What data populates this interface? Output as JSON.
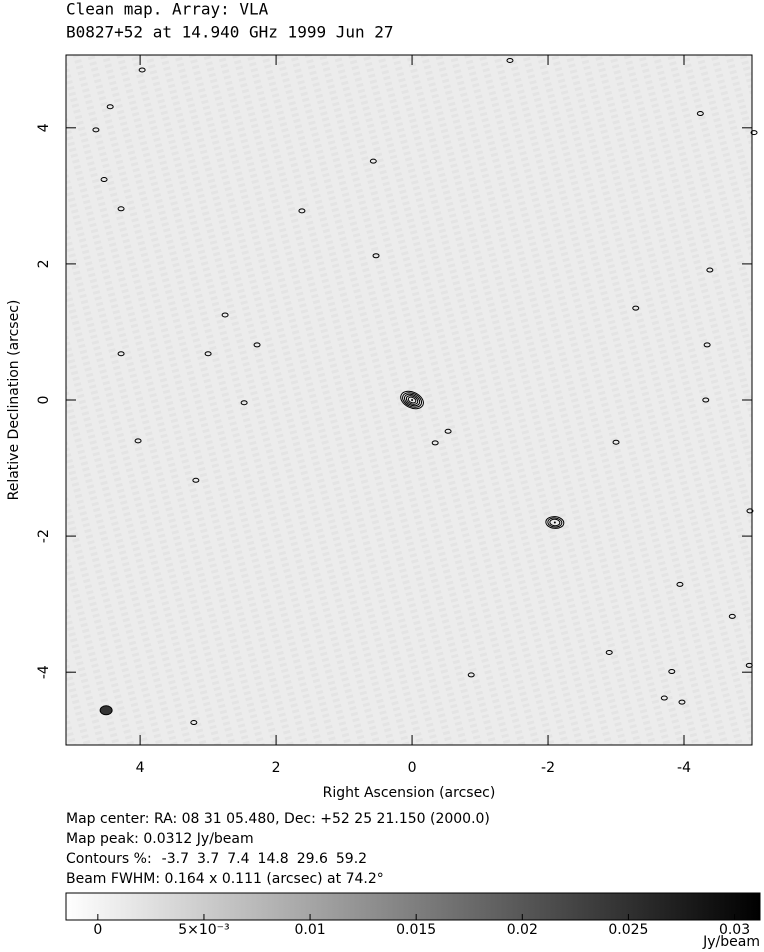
{
  "chart_data": {
    "type": "contour",
    "title": "Clean map.  Array: VLA",
    "subtitle": "B0827+52 at 14.940 GHz 1999 Jun 27",
    "x_label": "Right Ascension  (arcsec)",
    "y_label": "Relative Declination  (arcsec)",
    "xlim": [
      5.09,
      -5.0
    ],
    "xticks": [
      4,
      2,
      0,
      -2,
      -4
    ],
    "ylim": [
      -5.07,
      5.07
    ],
    "yticks": [
      -4,
      -2,
      0,
      2,
      4
    ],
    "info": [
      "Map center:  RA: 08 31 05.480,  Dec: +52 25 21.150 (2000.0)",
      "Map peak: 0.0312 Jy/beam"
    ],
    "contours_label": "Contours %:",
    "contour_levels": [
      -3.7,
      3.7,
      7.4,
      14.8,
      29.6,
      59.2
    ],
    "beam_text": "Beam FWHM: 0.164 x 0.111 (arcsec) at 74.2°",
    "sources": {
      "x": [
        0,
        -2.1
      ],
      "y": [
        0,
        -1.8
      ]
    },
    "beam": {
      "x": 4.5,
      "y": -4.56
    },
    "points": {
      "x": [
        3.97,
        -1.44,
        4.44,
        4.65,
        -4.24,
        -5.03,
        0.57,
        4.53,
        4.28,
        1.62,
        0.53,
        -4.38,
        -3.29,
        2.75,
        -4.34,
        2.28,
        4.28,
        3.0,
        -4.32,
        2.47,
        -0.53,
        -0.34,
        4.03,
        -3.0,
        3.18,
        -4.97,
        -3.94,
        -4.71,
        -2.9,
        -4.96,
        -3.82,
        -0.87,
        -3.71,
        -3.97,
        3.21
      ],
      "y": [
        4.85,
        4.99,
        4.31,
        3.97,
        4.21,
        3.93,
        3.51,
        3.24,
        2.81,
        2.78,
        2.12,
        1.91,
        1.35,
        1.25,
        0.81,
        0.81,
        0.68,
        0.68,
        0,
        -0.04,
        -0.46,
        -0.63,
        -0.6,
        -0.62,
        -1.18,
        -1.63,
        -2.71,
        -3.18,
        -3.71,
        -3.9,
        -3.99,
        -4.04,
        -4.38,
        -4.44,
        -4.74
      ]
    },
    "colorbar": {
      "lim": [
        -0.0015,
        0.0312
      ],
      "ticks": [
        0,
        {
          "value": 0.005,
          "label": "5×10⁻³"
        },
        0.01,
        0.015,
        0.02,
        0.025,
        0.03
      ],
      "unit": "Jy/beam"
    }
  }
}
